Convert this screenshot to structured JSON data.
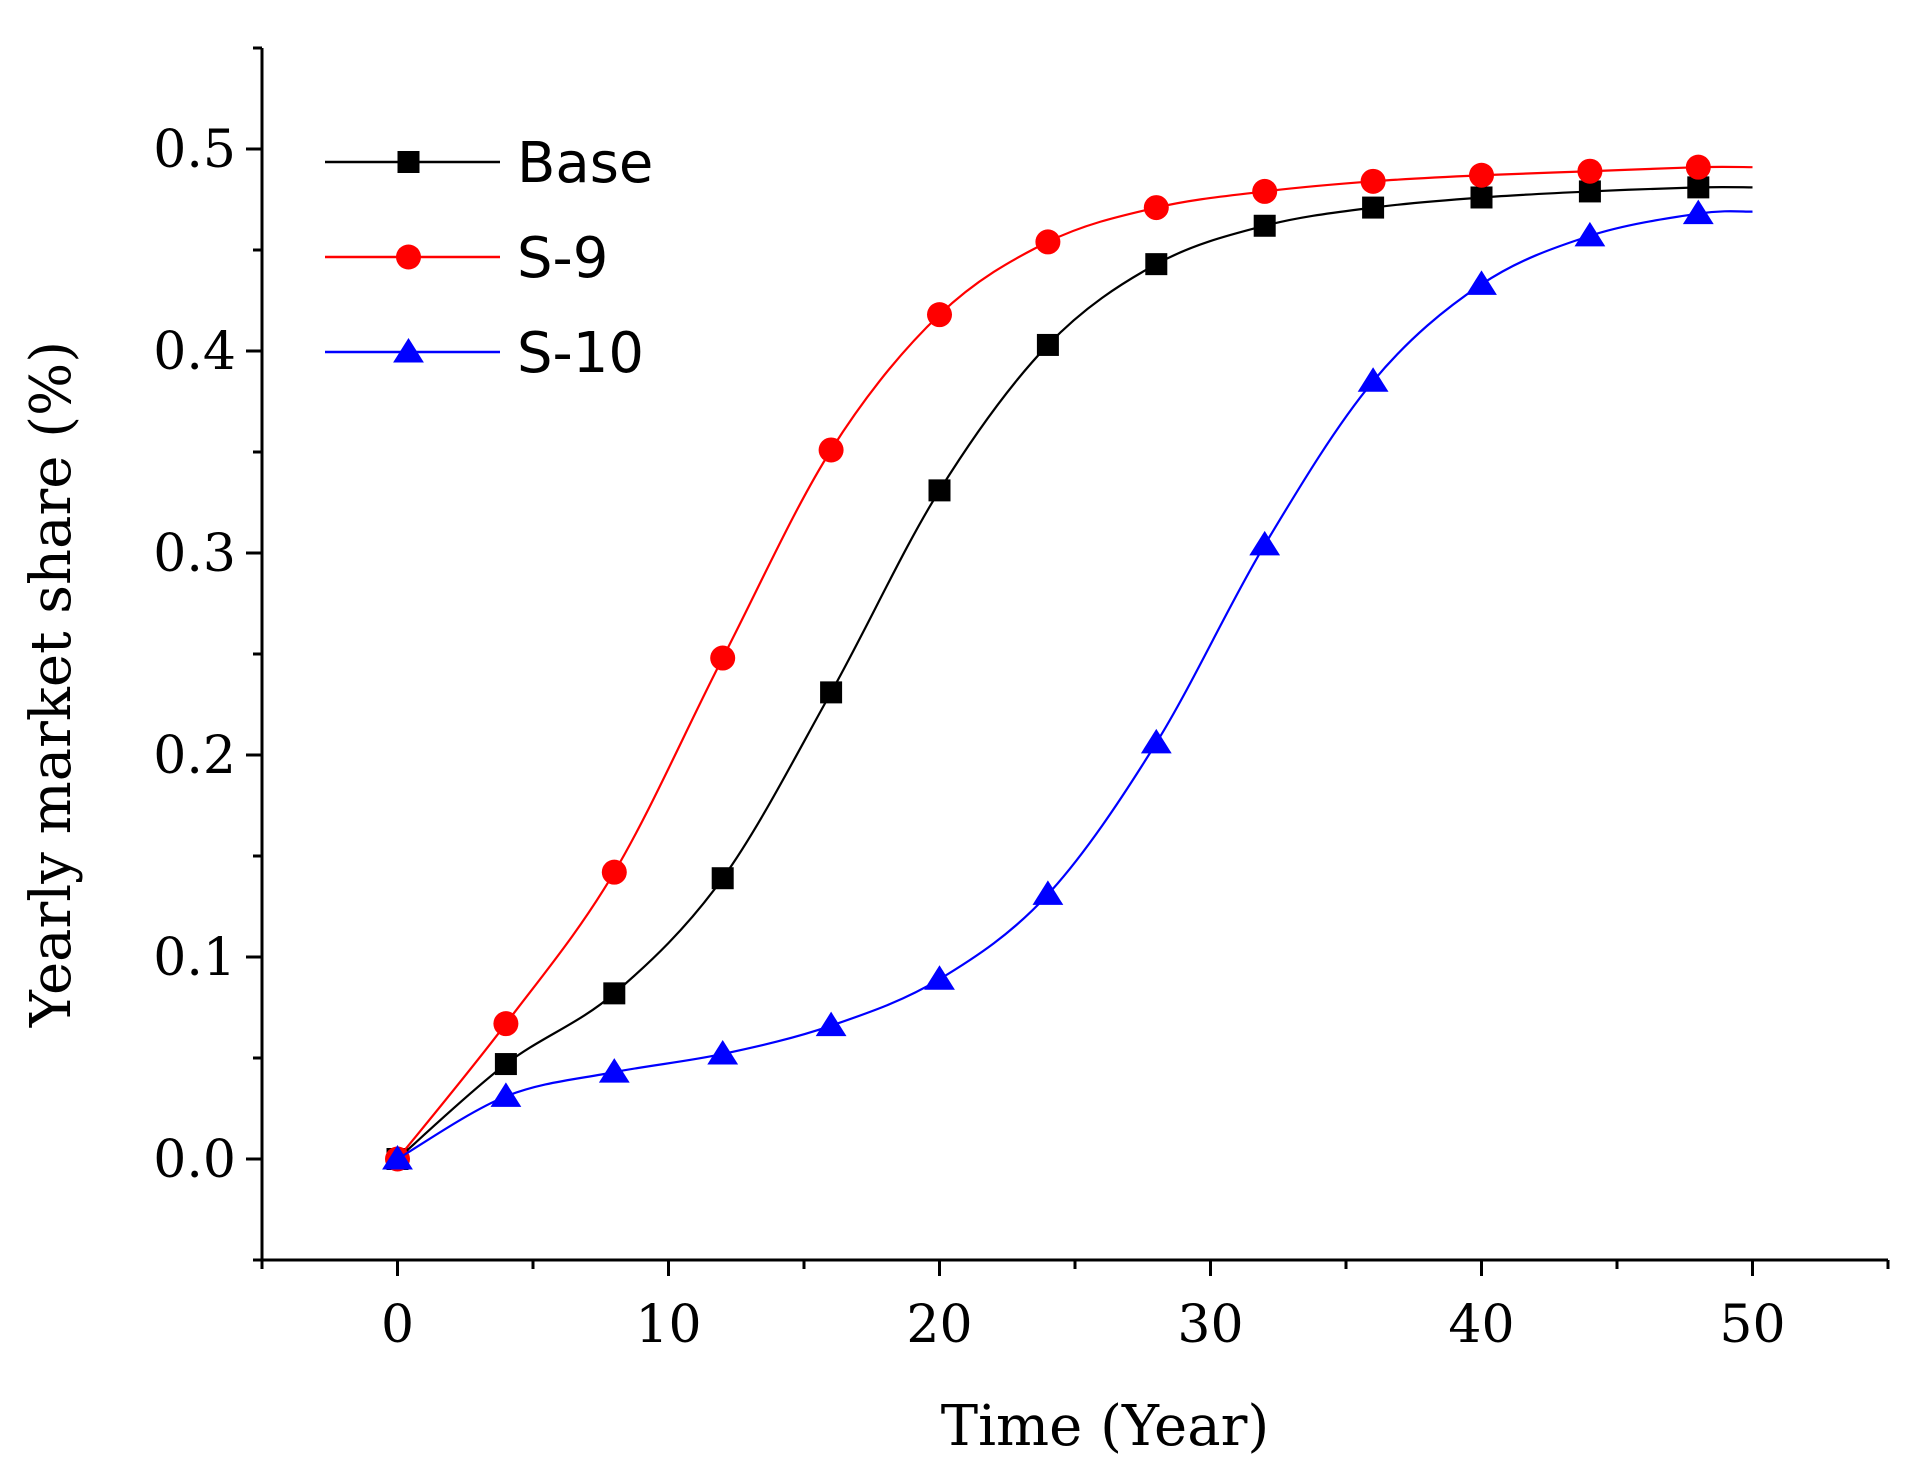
{
  "chart_data": {
    "type": "line",
    "xlabel": "Time (Year)",
    "ylabel": "Yearly market share (%)",
    "xlim": [
      -5,
      55
    ],
    "ylim": [
      -0.05,
      0.55
    ],
    "x_ticks": [
      0,
      10,
      20,
      30,
      40,
      50
    ],
    "y_ticks": [
      0.0,
      0.1,
      0.2,
      0.3,
      0.4,
      0.5
    ],
    "x_tick_labels": [
      "0",
      "10",
      "20",
      "30",
      "40",
      "50"
    ],
    "y_tick_labels": [
      "0.0",
      "0.1",
      "0.2",
      "0.3",
      "0.4",
      "0.5"
    ],
    "legend_position": "top-left",
    "grid": false,
    "series": [
      {
        "name": "Base",
        "color": "#000000",
        "marker": "square",
        "x": [
          0,
          4,
          8,
          12,
          16,
          20,
          24,
          28,
          32,
          36,
          40,
          44,
          48
        ],
        "values": [
          0.0,
          0.047,
          0.082,
          0.139,
          0.231,
          0.331,
          0.403,
          0.443,
          0.462,
          0.471,
          0.476,
          0.479,
          0.481
        ],
        "line_end": [
          50,
          0.481
        ]
      },
      {
        "name": "S-9",
        "color": "#ff0000",
        "marker": "circle",
        "x": [
          0,
          4,
          8,
          12,
          16,
          20,
          24,
          28,
          32,
          36,
          40,
          44,
          48
        ],
        "values": [
          0.0,
          0.067,
          0.142,
          0.248,
          0.351,
          0.418,
          0.454,
          0.471,
          0.479,
          0.484,
          0.487,
          0.489,
          0.491
        ],
        "line_end": [
          50,
          0.491
        ]
      },
      {
        "name": "S-10",
        "color": "#0000ff",
        "marker": "triangle",
        "x": [
          0,
          4,
          8,
          12,
          16,
          20,
          24,
          28,
          32,
          36,
          40,
          44,
          48
        ],
        "values": [
          0.0,
          0.031,
          0.043,
          0.052,
          0.066,
          0.089,
          0.131,
          0.206,
          0.304,
          0.385,
          0.433,
          0.457,
          0.468
        ],
        "line_end": [
          50,
          0.469
        ]
      }
    ]
  }
}
